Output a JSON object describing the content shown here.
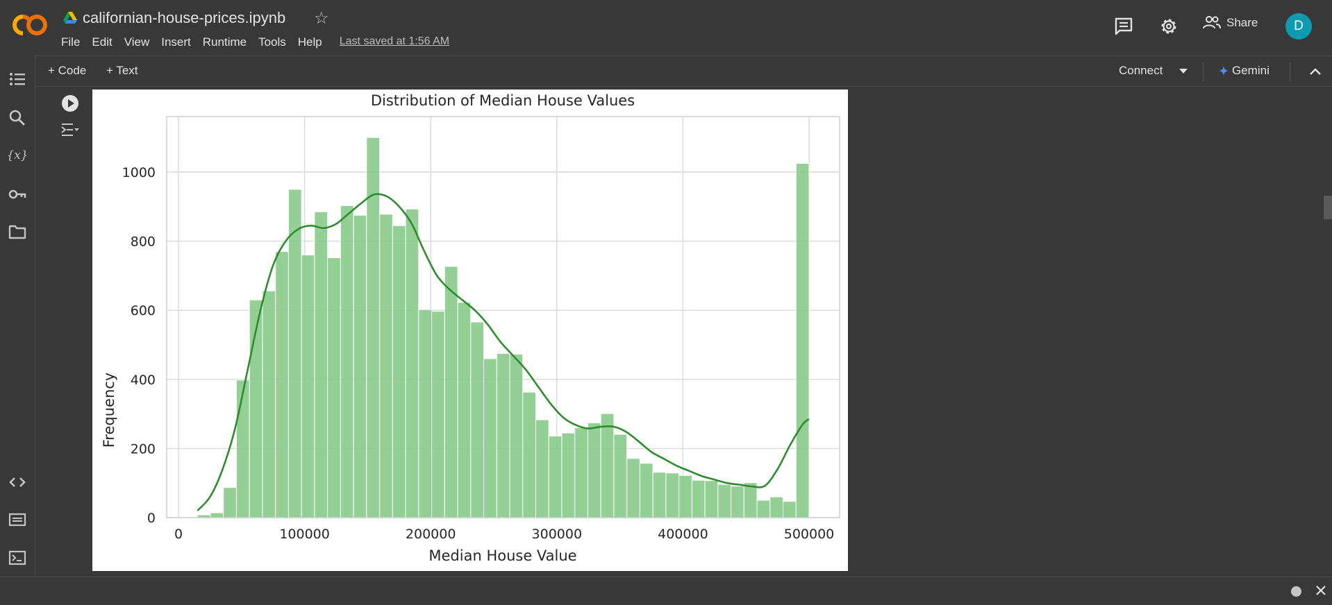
{
  "header": {
    "logo": "colab-logo",
    "title": "californian-house-prices.ipynb",
    "star_icon": "star-icon",
    "menus": [
      "File",
      "Edit",
      "View",
      "Insert",
      "Runtime",
      "Tools",
      "Help"
    ],
    "last_saved": "Last saved at 1:56 AM",
    "share_label": "Share",
    "avatar_letter": "D",
    "avatar_color": "#0b9bb0"
  },
  "sidebar": {
    "icons": [
      "table-of-contents-icon",
      "search-icon",
      "variables-icon",
      "secrets-key-icon",
      "files-folder-icon",
      "code-snippets-icon",
      "command-palette-icon",
      "terminal-icon"
    ]
  },
  "toolbar": {
    "code_label": "+ Code",
    "text_label": "+ Text",
    "connect_label": "Connect",
    "gemini_label": "Gemini",
    "gemini_color": "#4c8df6"
  },
  "chart_data": {
    "type": "histogram",
    "title": "Distribution of Median House Values",
    "xlabel": "Median House Value",
    "ylabel": "Frequency",
    "xlim": [
      0,
      520000
    ],
    "ylim": [
      0,
      1150
    ],
    "x_ticks": [
      0,
      100000,
      200000,
      300000,
      400000,
      500000
    ],
    "y_ticks": [
      0,
      200,
      400,
      600,
      800,
      1000
    ],
    "grid": true,
    "bar_color": "#81c784",
    "kde_color": "#2e8b2e",
    "bins_start": 14999,
    "bins_end": 500001,
    "bin_counts": [
      8,
      14,
      87,
      398,
      630,
      656,
      770,
      950,
      760,
      885,
      752,
      903,
      875,
      1100,
      878,
      845,
      893,
      602,
      597,
      727,
      623,
      566,
      460,
      475,
      473,
      363,
      283,
      236,
      245,
      260,
      274,
      301,
      241,
      171,
      157,
      131,
      129,
      122,
      108,
      107,
      96,
      91,
      101,
      50,
      60,
      47,
      1025
    ],
    "kde": {
      "x": [
        15000,
        25000,
        35000,
        45000,
        55000,
        65000,
        75000,
        85000,
        95000,
        105000,
        115000,
        125000,
        135000,
        145000,
        155000,
        165000,
        175000,
        185000,
        195000,
        205000,
        215000,
        225000,
        235000,
        245000,
        255000,
        265000,
        275000,
        285000,
        295000,
        305000,
        315000,
        325000,
        335000,
        345000,
        355000,
        365000,
        375000,
        385000,
        395000,
        405000,
        415000,
        425000,
        435000,
        445000,
        455000,
        465000,
        475000,
        485000,
        495000,
        500000
      ],
      "y": [
        20,
        60,
        140,
        260,
        430,
        600,
        730,
        800,
        835,
        845,
        838,
        850,
        880,
        910,
        935,
        930,
        900,
        850,
        770,
        700,
        660,
        630,
        600,
        560,
        510,
        470,
        430,
        380,
        330,
        290,
        268,
        258,
        263,
        263,
        248,
        220,
        190,
        170,
        150,
        135,
        120,
        110,
        100,
        95,
        90,
        92,
        140,
        210,
        270,
        285
      ]
    }
  },
  "statusbar": {
    "dot_icon": "status-dot-icon",
    "close_icon": "close-icon"
  }
}
